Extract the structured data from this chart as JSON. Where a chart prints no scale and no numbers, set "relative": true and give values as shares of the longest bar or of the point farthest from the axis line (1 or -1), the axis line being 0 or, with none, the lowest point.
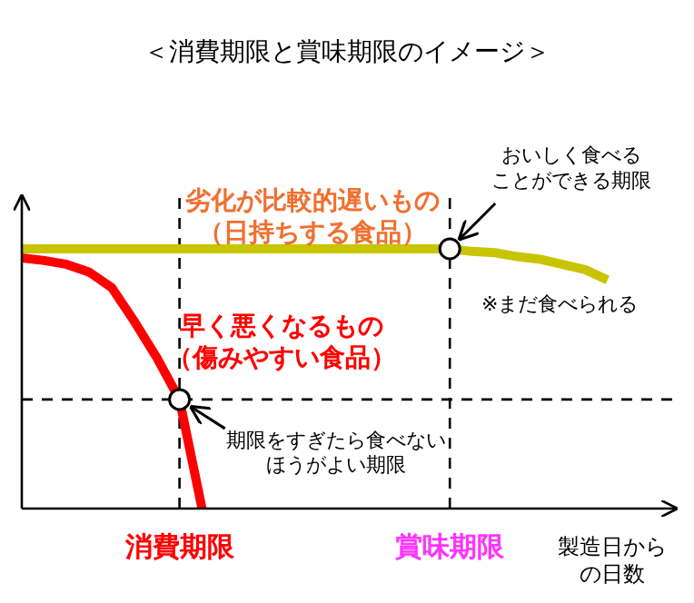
{
  "chart_data": {
    "type": "line",
    "title": "＜消費期限と賞味期限のイメージ＞",
    "xlabel": "製造日からの日数",
    "relative": true,
    "categories": [
      null,
      null,
      null,
      null,
      null,
      null,
      null,
      "消費期限",
      null,
      null,
      null,
      null,
      null,
      null,
      null,
      null,
      null,
      null,
      null,
      "賞味期限",
      null,
      null,
      null,
      null,
      null,
      null,
      null,
      null,
      null
    ],
    "series": [
      {
        "color": "#c8c400",
        "values": [
          1,
          1,
          1,
          1,
          1,
          1,
          1,
          1,
          1,
          1,
          1,
          1,
          1,
          1,
          1,
          1,
          1,
          1,
          1,
          1,
          0.99,
          0.985,
          0.97,
          0.96,
          0.94,
          0.92,
          0.88,
          null,
          null
        ]
      },
      {
        "color": "#ff0000",
        "values": [
          0.965,
          0.955,
          0.94,
          0.91,
          0.85,
          0.72,
          0.58,
          0.42,
          0,
          null,
          null,
          null,
          null,
          null,
          null,
          null,
          null,
          null,
          null,
          null,
          null,
          null,
          null,
          null,
          null,
          null,
          null,
          null,
          null
        ]
      }
    ],
    "ref_lines": [
      {
        "axis": "x",
        "value": "消費期限",
        "line_style": "dashed"
      },
      {
        "axis": "x",
        "value": "賞味期限",
        "line_style": "dashed"
      },
      {
        "axis": "y",
        "value": 0.42,
        "line_style": "dashed"
      }
    ],
    "annotations": [
      "劣化が比較的遅いもの（日持ちする食品）",
      "早く悪くなるもの（傷みやすい食品）",
      "※まだ食べられる",
      {
        "text": "おいしく食べることができる期限",
        "x": "賞味期限",
        "y": 1
      },
      {
        "text": "期限をすぎたら食べないほうがよい期限",
        "x": "消費期限",
        "y": 0.42
      }
    ]
  }
}
